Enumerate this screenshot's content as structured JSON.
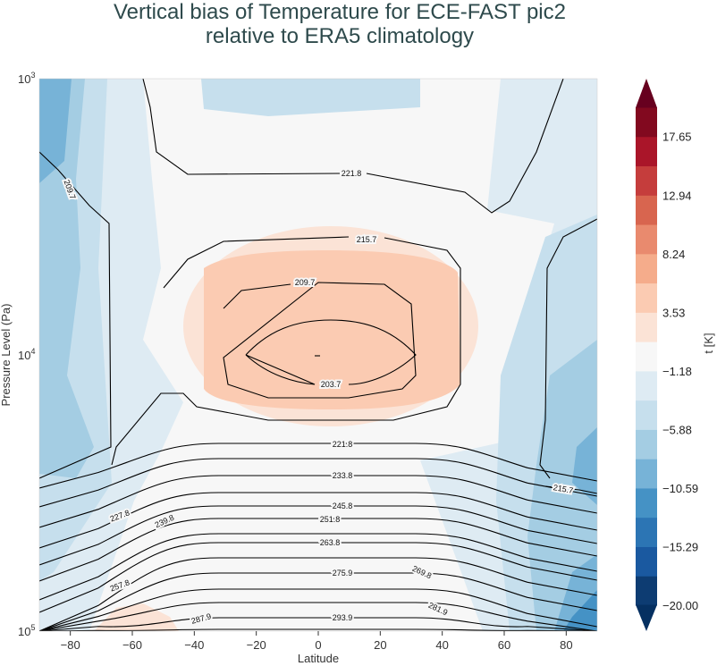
{
  "chart_data": {
    "type": "contour",
    "title": "Vertical bias of Temperature for ECE-FAST pic2",
    "subtitle": "relative to ERA5 climatology",
    "xlabel": "Latitude",
    "ylabel": "Pressure Level (Pa)",
    "xlim": [
      -90,
      90
    ],
    "ylim": [
      100000,
      1000
    ],
    "yscale": "log",
    "x_ticks": [
      "−80",
      "−60",
      "−40",
      "−20",
      "0",
      "20",
      "40",
      "60",
      "80"
    ],
    "x_tick_values": [
      -80,
      -60,
      -40,
      -20,
      0,
      20,
      40,
      60,
      80
    ],
    "y_ticks": [
      {
        "base": "10",
        "exp": "3",
        "value": 1000
      },
      {
        "base": "10",
        "exp": "4",
        "value": 10000
      },
      {
        "base": "10",
        "exp": "5",
        "value": 100000
      }
    ],
    "colorbar": {
      "label": "t [K]",
      "ticks": [
        "17.65",
        "12.94",
        "8.24",
        "3.53",
        "−1.18",
        "−5.88",
        "−10.59",
        "−15.29",
        "−20.00"
      ],
      "tick_values": [
        17.65,
        12.94,
        8.24,
        3.53,
        -1.18,
        -5.88,
        -10.59,
        -15.29,
        -20.0
      ],
      "range": [
        -20,
        20
      ],
      "extend": "both",
      "colors": [
        "#0d3c72",
        "#1a59a0",
        "#2c75b4",
        "#4592c5",
        "#77b3d7",
        "#a4cde3",
        "#c6dfed",
        "#deebf3",
        "#f7f7f7",
        "#fbe3d6",
        "#fbcbb2",
        "#f5ac8b",
        "#e98a6e",
        "#d8654f",
        "#c53d3c",
        "#aa1529",
        "#82091f"
      ],
      "extend_low_color": "#053061",
      "extend_high_color": "#67001f"
    },
    "contour_labels": [
      "221.8",
      "215.7",
      "209.7",
      "203.7",
      "209.7",
      "221.8",
      "227.8",
      "233.8",
      "239.8",
      "245.8",
      "251.8",
      "257.8",
      "263.8",
      "269.8",
      "275.9",
      "281.9",
      "287.9",
      "293.9",
      "215.7"
    ],
    "bias_field_summary": {
      "warm_bias_center": {
        "lat": 0,
        "pressure_pa": 10000,
        "bias_range_k": [
          3.53,
          8.24
        ]
      },
      "cold_bias_edges": {
        "lat": [
          -90,
          90
        ],
        "bias_range_k": [
          -15.29,
          -5.88
        ]
      }
    }
  }
}
